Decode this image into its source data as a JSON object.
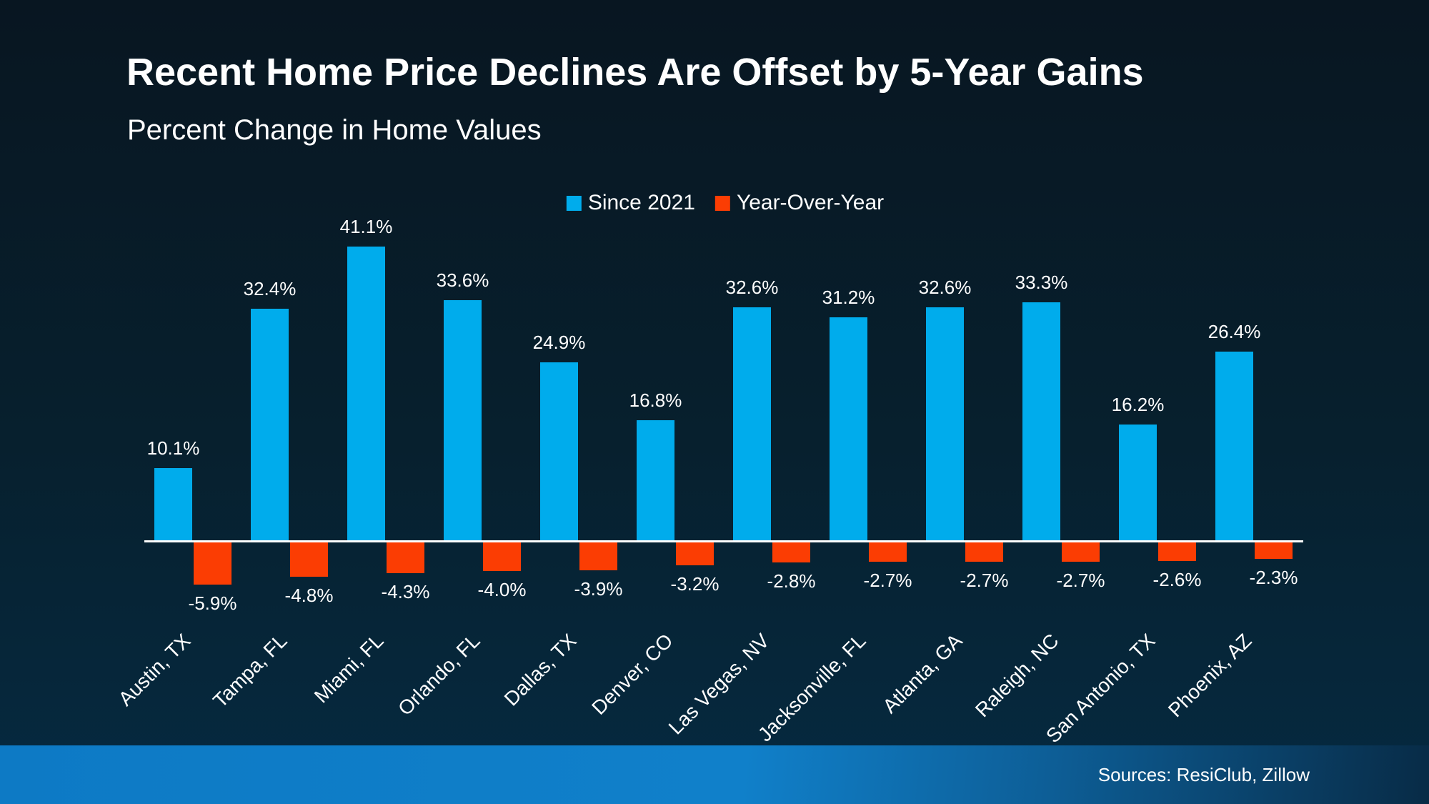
{
  "title": "Recent Home Price Declines Are Offset by 5-Year Gains",
  "subtitle": "Percent Change in Home Values",
  "legend": {
    "series1_label": "Since 2021",
    "series2_label": "Year-Over-Year"
  },
  "footer": {
    "sources_text": "Sources: ResiClub, Zillow"
  },
  "colors": {
    "since_2021_blue": "#00ACEC",
    "year_over_year_orange": "#FB3D03",
    "axis_line": "#FFFFFF",
    "background_top": "#081621",
    "background_bottom": "#052A41",
    "footer_blue": "#0D7AC5",
    "footer_dark_right": "#082B46",
    "text": "#FFFFFF"
  },
  "chart_data": {
    "type": "bar",
    "title": "Recent Home Price Declines Are Offset by 5-Year Gains",
    "subtitle": "Percent Change in Home Values",
    "xlabel": "",
    "ylabel": "Percent Change in Home Values (%)",
    "ylim": [
      -8,
      45
    ],
    "grid": false,
    "legend_position": "top-center",
    "baseline": 0,
    "categories": [
      "Austin, TX",
      "Tampa, FL",
      "Miami, FL",
      "Orlando, FL",
      "Dallas, TX",
      "Denver, CO",
      "Las Vegas, NV",
      "Jacksonville, FL",
      "Atlanta, GA",
      "Raleigh, NC",
      "San Antonio, TX",
      "Phoenix, AZ"
    ],
    "series": [
      {
        "name": "Since 2021",
        "values": [
          10.1,
          32.4,
          41.1,
          33.6,
          24.9,
          16.8,
          32.6,
          31.2,
          32.6,
          33.3,
          16.2,
          26.4
        ],
        "labels": [
          "10.1%",
          "32.4%",
          "41.1%",
          "33.6%",
          "24.9%",
          "16.8%",
          "32.6%",
          "31.2%",
          "32.6%",
          "33.3%",
          "16.2%",
          "26.4%"
        ]
      },
      {
        "name": "Year-Over-Year",
        "values": [
          -5.9,
          -4.8,
          -4.3,
          -4.0,
          -3.9,
          -3.2,
          -2.8,
          -2.7,
          -2.7,
          -2.7,
          -2.6,
          -2.3
        ],
        "labels": [
          "-5.9%",
          "-4.8%",
          "-4.3%",
          "-4.0%",
          "-3.9%",
          "-3.2%",
          "-2.8%",
          "-2.7%",
          "-2.7%",
          "-2.7%",
          "-2.6%",
          "-2.3%"
        ]
      }
    ]
  }
}
